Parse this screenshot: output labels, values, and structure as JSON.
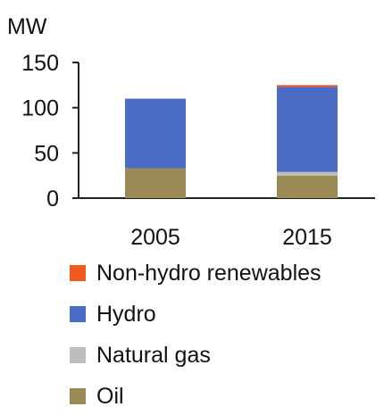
{
  "chart_data": {
    "type": "bar",
    "stacked": true,
    "ylabel": "MW",
    "ylim": [
      0,
      150
    ],
    "yticks": [
      0,
      50,
      100,
      150
    ],
    "categories": [
      "2005",
      "2015"
    ],
    "series": [
      {
        "name": "Oil",
        "color": "#9b8a55",
        "values": [
          33,
          25
        ]
      },
      {
        "name": "Natural gas",
        "color": "#bdbdbd",
        "values": [
          0,
          4
        ]
      },
      {
        "name": "Hydro",
        "color": "#4a6cc4",
        "values": [
          77,
          94
        ]
      },
      {
        "name": "Non-hydro renewables",
        "color": "#f25a1d",
        "values": [
          0,
          2
        ]
      }
    ],
    "grid": false,
    "legend": "bottom"
  }
}
